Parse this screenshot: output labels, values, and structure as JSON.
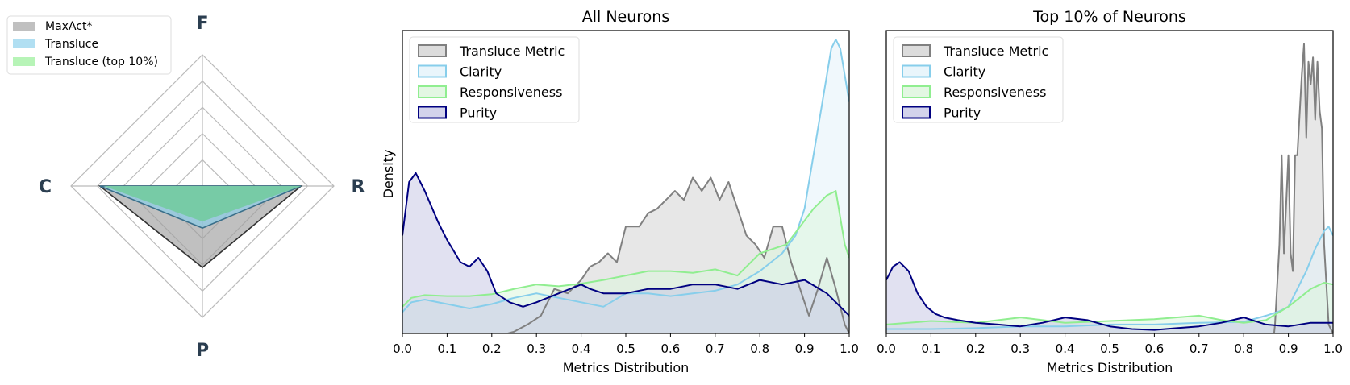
{
  "chart_data": [
    {
      "type": "radar",
      "axes": [
        "F",
        "R",
        "P",
        "C"
      ],
      "rlim": [
        0,
        1
      ],
      "rings": [
        0.2,
        0.4,
        0.6,
        0.8,
        1.0
      ],
      "legend_placement": "top-left",
      "series": [
        {
          "name": "MaxAct*",
          "color": "#9e9e9e",
          "fill_opacity": 0.6,
          "values": [
            0.0,
            0.75,
            0.62,
            0.78
          ]
        },
        {
          "name": "Transluce",
          "color": "#87ceeb",
          "fill_opacity": 0.6,
          "values": [
            0.0,
            0.75,
            0.32,
            0.78
          ]
        },
        {
          "name": "Transluce (top 10%)",
          "color": "#90ee90",
          "fill_opacity": 0.6,
          "values": [
            0.0,
            0.75,
            0.27,
            0.75
          ]
        }
      ],
      "combined_color": "#77cba6"
    },
    {
      "type": "area",
      "title": "All Neurons",
      "xlabel": "Metrics Distribution",
      "ylabel": "Density",
      "xlim": [
        0.0,
        1.0
      ],
      "ylim": [
        0,
        3.4
      ],
      "xticks": [
        "0.0",
        "0.1",
        "0.2",
        "0.3",
        "0.4",
        "0.5",
        "0.6",
        "0.7",
        "0.8",
        "0.9",
        "1.0"
      ],
      "legend_placement": "top-left",
      "series": [
        {
          "name": "Transluce Metric",
          "line": "#808080",
          "fill": "#d3d3d3",
          "x": [
            0,
            0.1,
            0.2,
            0.25,
            0.28,
            0.31,
            0.34,
            0.37,
            0.4,
            0.42,
            0.44,
            0.46,
            0.48,
            0.5,
            0.53,
            0.55,
            0.57,
            0.59,
            0.61,
            0.63,
            0.65,
            0.67,
            0.69,
            0.71,
            0.73,
            0.75,
            0.77,
            0.79,
            0.81,
            0.83,
            0.85,
            0.87,
            0.89,
            0.91,
            0.93,
            0.95,
            0.97,
            0.99,
            1.0
          ],
          "y": [
            -0.1,
            -0.05,
            -0.05,
            0.02,
            0.1,
            0.2,
            0.5,
            0.45,
            0.6,
            0.75,
            0.8,
            0.9,
            0.8,
            1.2,
            1.2,
            1.35,
            1.4,
            1.5,
            1.6,
            1.5,
            1.75,
            1.6,
            1.75,
            1.5,
            1.7,
            1.4,
            1.1,
            1.0,
            0.85,
            1.2,
            1.2,
            0.8,
            0.5,
            0.2,
            0.5,
            0.85,
            0.5,
            0.1,
            0.0
          ]
        },
        {
          "name": "Clarity",
          "line": "#87ceeb",
          "fill": "#e3f3fa",
          "x": [
            0,
            0.02,
            0.05,
            0.1,
            0.15,
            0.2,
            0.25,
            0.3,
            0.35,
            0.4,
            0.45,
            0.5,
            0.55,
            0.6,
            0.65,
            0.7,
            0.75,
            0.8,
            0.85,
            0.88,
            0.9,
            0.92,
            0.94,
            0.96,
            0.97,
            0.98,
            0.99,
            1.0
          ],
          "y": [
            0.24,
            0.35,
            0.38,
            0.33,
            0.28,
            0.33,
            0.4,
            0.45,
            0.4,
            0.35,
            0.3,
            0.45,
            0.45,
            0.42,
            0.45,
            0.48,
            0.55,
            0.7,
            0.9,
            1.1,
            1.4,
            2.0,
            2.6,
            3.2,
            3.3,
            3.2,
            2.9,
            2.6
          ]
        },
        {
          "name": "Responsiveness",
          "line": "#90ee90",
          "fill": "#dcf5dc",
          "x": [
            0,
            0.02,
            0.05,
            0.1,
            0.15,
            0.2,
            0.25,
            0.3,
            0.35,
            0.4,
            0.45,
            0.5,
            0.55,
            0.6,
            0.65,
            0.7,
            0.75,
            0.8,
            0.83,
            0.86,
            0.89,
            0.92,
            0.95,
            0.97,
            0.99,
            1.0
          ],
          "y": [
            0.3,
            0.4,
            0.43,
            0.42,
            0.42,
            0.44,
            0.5,
            0.55,
            0.53,
            0.56,
            0.6,
            0.65,
            0.7,
            0.7,
            0.68,
            0.72,
            0.65,
            0.9,
            0.95,
            1.0,
            1.2,
            1.4,
            1.55,
            1.6,
            1.0,
            0.85
          ]
        },
        {
          "name": "Purity",
          "line": "#000080",
          "fill": "#c8c8e6",
          "x": [
            0,
            0.015,
            0.03,
            0.05,
            0.08,
            0.1,
            0.13,
            0.15,
            0.17,
            0.19,
            0.21,
            0.24,
            0.27,
            0.3,
            0.35,
            0.4,
            0.42,
            0.45,
            0.5,
            0.55,
            0.6,
            0.65,
            0.7,
            0.75,
            0.8,
            0.85,
            0.9,
            0.95,
            1.0
          ],
          "y": [
            1.1,
            1.7,
            1.8,
            1.6,
            1.25,
            1.05,
            0.8,
            0.75,
            0.85,
            0.7,
            0.45,
            0.35,
            0.3,
            0.35,
            0.45,
            0.55,
            0.5,
            0.45,
            0.45,
            0.5,
            0.5,
            0.55,
            0.55,
            0.5,
            0.6,
            0.55,
            0.6,
            0.45,
            0.2
          ]
        }
      ]
    },
    {
      "type": "area",
      "title": "Top 10% of Neurons",
      "xlabel": "Metrics Distribution",
      "ylabel": "",
      "xlim": [
        0.0,
        1.0
      ],
      "ylim": [
        0,
        3.4
      ],
      "xticks": [
        "0.0",
        "0.1",
        "0.2",
        "0.3",
        "0.4",
        "0.5",
        "0.6",
        "0.7",
        "0.8",
        "0.9",
        "1.0"
      ],
      "legend_placement": "top-left",
      "series": [
        {
          "name": "Transluce Metric",
          "line": "#808080",
          "fill": "#d3d3d3",
          "x": [
            0.86,
            0.87,
            0.88,
            0.885,
            0.89,
            0.9,
            0.905,
            0.91,
            0.915,
            0.92,
            0.93,
            0.935,
            0.94,
            0.945,
            0.95,
            0.955,
            0.96,
            0.965,
            0.97,
            0.975,
            0.98,
            0.99,
            1.0
          ],
          "y": [
            -0.4,
            0.1,
            1.0,
            2.0,
            0.9,
            2.0,
            0.9,
            0.7,
            2.0,
            2.0,
            2.9,
            3.25,
            2.2,
            3.05,
            2.8,
            3.1,
            2.4,
            3.05,
            2.5,
            2.3,
            1.0,
            0.1,
            0.0
          ]
        },
        {
          "name": "Clarity",
          "line": "#87ceeb",
          "fill": "#e3f3fa",
          "x": [
            0,
            0.1,
            0.2,
            0.3,
            0.4,
            0.5,
            0.6,
            0.7,
            0.8,
            0.85,
            0.88,
            0.9,
            0.92,
            0.94,
            0.96,
            0.98,
            0.99,
            1.0
          ],
          "y": [
            0.05,
            0.05,
            0.06,
            0.08,
            0.08,
            0.1,
            0.1,
            0.12,
            0.13,
            0.2,
            0.25,
            0.3,
            0.5,
            0.7,
            0.95,
            1.15,
            1.2,
            1.1
          ]
        },
        {
          "name": "Responsiveness",
          "line": "#90ee90",
          "fill": "#dcf5dc",
          "x": [
            0,
            0.1,
            0.2,
            0.3,
            0.4,
            0.5,
            0.6,
            0.7,
            0.75,
            0.8,
            0.85,
            0.9,
            0.95,
            0.98,
            1.0
          ],
          "y": [
            0.1,
            0.14,
            0.12,
            0.18,
            0.12,
            0.14,
            0.16,
            0.2,
            0.15,
            0.12,
            0.15,
            0.3,
            0.5,
            0.57,
            0.55
          ]
        },
        {
          "name": "Purity",
          "line": "#000080",
          "fill": "#c8c8e6",
          "x": [
            0,
            0.015,
            0.03,
            0.05,
            0.07,
            0.09,
            0.11,
            0.13,
            0.16,
            0.2,
            0.25,
            0.3,
            0.35,
            0.4,
            0.45,
            0.5,
            0.55,
            0.6,
            0.65,
            0.7,
            0.75,
            0.8,
            0.85,
            0.9,
            0.95,
            1.0
          ],
          "y": [
            0.6,
            0.75,
            0.8,
            0.7,
            0.45,
            0.3,
            0.22,
            0.18,
            0.15,
            0.12,
            0.1,
            0.08,
            0.12,
            0.18,
            0.15,
            0.08,
            0.05,
            0.04,
            0.06,
            0.08,
            0.12,
            0.18,
            0.1,
            0.08,
            0.12,
            0.12
          ]
        }
      ]
    }
  ]
}
